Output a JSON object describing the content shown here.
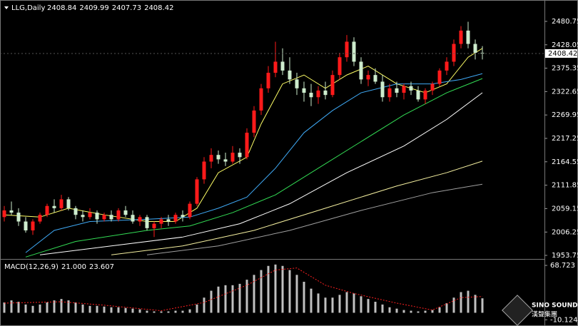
{
  "chart_data": [
    {
      "type": "candlestick",
      "title": "LLG,Daily",
      "header_values": [
        2408.84,
        2409.99,
        2407.73,
        2408.42
      ],
      "price_label": 2408.42,
      "up_color": "#ff1a1a",
      "down_color": "#cdeccd",
      "ylim": [
        1947.3,
        2501.6
      ],
      "yticks": [
        1953.75,
        2006.25,
        2059.15,
        2111.85,
        2164.55,
        2217.25,
        2269.95,
        2322.65,
        2375.35,
        2428.05,
        2480.75
      ],
      "open": [
        2040,
        2055,
        2050,
        2030,
        2010,
        2030,
        2045,
        2065,
        2060,
        2080,
        2060,
        2045,
        2040,
        2050,
        2035,
        2045,
        2035,
        2055,
        2045,
        2030,
        2040,
        2015,
        2025,
        2035,
        2030,
        2045,
        2040,
        2070,
        2125,
        2165,
        2180,
        2170,
        2165,
        2185,
        2175,
        2230,
        2280,
        2330,
        2365,
        2390,
        2370,
        2350,
        2330,
        2320,
        2310,
        2325,
        2315,
        2360,
        2400,
        2435,
        2390,
        2350,
        2360,
        2345,
        2310,
        2330,
        2320,
        2335,
        2325,
        2305,
        2325,
        2340,
        2370,
        2390,
        2430,
        2460,
        2430,
        2410
      ],
      "high": [
        2065,
        2075,
        2060,
        2040,
        2035,
        2050,
        2070,
        2080,
        2090,
        2085,
        2065,
        2055,
        2060,
        2055,
        2050,
        2055,
        2060,
        2065,
        2055,
        2045,
        2045,
        2030,
        2040,
        2045,
        2050,
        2055,
        2075,
        2130,
        2175,
        2195,
        2190,
        2185,
        2200,
        2195,
        2240,
        2290,
        2340,
        2380,
        2435,
        2420,
        2400,
        2365,
        2345,
        2340,
        2335,
        2345,
        2370,
        2410,
        2450,
        2445,
        2400,
        2370,
        2375,
        2360,
        2340,
        2345,
        2340,
        2345,
        2335,
        2330,
        2345,
        2375,
        2400,
        2440,
        2470,
        2480,
        2440,
        2425
      ],
      "low": [
        2030,
        2045,
        2020,
        2005,
        2000,
        2025,
        2040,
        2050,
        2055,
        2055,
        2035,
        2030,
        2035,
        2025,
        2030,
        2030,
        2030,
        2040,
        2025,
        2020,
        2010,
        1995,
        2015,
        2020,
        2025,
        2030,
        2035,
        2065,
        2115,
        2150,
        2160,
        2155,
        2160,
        2160,
        2170,
        2220,
        2270,
        2320,
        2355,
        2360,
        2340,
        2315,
        2300,
        2290,
        2295,
        2305,
        2310,
        2350,
        2390,
        2380,
        2340,
        2335,
        2340,
        2300,
        2300,
        2310,
        2305,
        2315,
        2300,
        2295,
        2315,
        2335,
        2360,
        2380,
        2420,
        2420,
        2395,
        2395
      ],
      "close": [
        2055,
        2050,
        2030,
        2010,
        2030,
        2045,
        2065,
        2060,
        2080,
        2060,
        2045,
        2040,
        2050,
        2035,
        2045,
        2035,
        2055,
        2045,
        2030,
        2040,
        2015,
        2025,
        2035,
        2030,
        2045,
        2040,
        2070,
        2125,
        2165,
        2180,
        2170,
        2165,
        2185,
        2175,
        2230,
        2280,
        2330,
        2365,
        2390,
        2370,
        2350,
        2330,
        2320,
        2310,
        2325,
        2315,
        2360,
        2400,
        2435,
        2390,
        2350,
        2360,
        2345,
        2310,
        2330,
        2320,
        2335,
        2325,
        2305,
        2325,
        2340,
        2370,
        2390,
        2430,
        2460,
        2430,
        2410,
        2408.42
      ],
      "lines": [
        {
          "color": "#ffff66",
          "x": [
            0,
            5,
            9,
            14,
            20,
            24,
            27,
            30,
            34,
            36,
            39,
            42,
            45,
            48,
            51,
            55,
            59,
            62,
            65,
            67
          ],
          "values": [
            2045,
            2040,
            2060,
            2045,
            2030,
            2030,
            2060,
            2140,
            2175,
            2250,
            2340,
            2360,
            2330,
            2360,
            2380,
            2340,
            2320,
            2340,
            2400,
            2420
          ]
        },
        {
          "color": "#3fa9f5",
          "x": [
            3,
            7,
            12,
            20,
            26,
            30,
            34,
            38,
            42,
            46,
            50,
            55,
            60,
            64,
            67
          ],
          "values": [
            1960,
            2010,
            2030,
            2035,
            2040,
            2060,
            2085,
            2150,
            2230,
            2280,
            2320,
            2340,
            2340,
            2350,
            2363
          ]
        },
        {
          "color": "#33dd55",
          "x": [
            3,
            10,
            20,
            26,
            32,
            38,
            44,
            50,
            56,
            62,
            67
          ],
          "values": [
            1950,
            1985,
            2010,
            2020,
            2050,
            2090,
            2150,
            2210,
            2270,
            2320,
            2352
          ]
        },
        {
          "color": "#ffffff",
          "x": [
            5,
            15,
            25,
            33,
            40,
            48,
            56,
            62,
            67
          ],
          "values": [
            1955,
            1975,
            1995,
            2025,
            2070,
            2140,
            2200,
            2260,
            2320
          ]
        },
        {
          "color": "#f5f0a0",
          "x": [
            15,
            25,
            35,
            45,
            55,
            62,
            67
          ],
          "values": [
            1955,
            1975,
            2010,
            2060,
            2110,
            2140,
            2166
          ]
        },
        {
          "color": "#a0a0a0",
          "x": [
            20,
            30,
            40,
            50,
            60,
            67
          ],
          "values": [
            1955,
            1975,
            2010,
            2055,
            2095,
            2114
          ]
        }
      ]
    },
    {
      "type": "bar",
      "title": "MACD(12,26,9)",
      "indicator_values": [
        "21.000",
        "23.607"
      ],
      "color": "#c0c0c0",
      "ylim": [
        -14,
        75
      ],
      "yticks": [
        -10.124,
        68.723
      ],
      "values": [
        15,
        18,
        16,
        12,
        10,
        12,
        15,
        18,
        20,
        18,
        15,
        12,
        10,
        10,
        9,
        8,
        8,
        7,
        6,
        5,
        3,
        2,
        2,
        2,
        3,
        3,
        5,
        12,
        22,
        32,
        38,
        40,
        40,
        42,
        48,
        55,
        62,
        68,
        70,
        68,
        62,
        55,
        45,
        35,
        28,
        22,
        22,
        26,
        30,
        28,
        24,
        20,
        16,
        12,
        8,
        6,
        4,
        3,
        2,
        3,
        4,
        8,
        14,
        22,
        30,
        32,
        26,
        21
      ],
      "signal": {
        "color": "#ff2020",
        "x": [
          0,
          8,
          14,
          22,
          28,
          34,
          38,
          41,
          45,
          49,
          55,
          60,
          64,
          67
        ],
        "values": [
          14,
          16,
          11,
          3,
          15,
          40,
          62,
          65,
          40,
          28,
          14,
          4,
          22,
          23.6
        ]
      }
    }
  ],
  "watermark": {
    "text": "SINO SOUND",
    "subtext": "漢聲集團"
  }
}
